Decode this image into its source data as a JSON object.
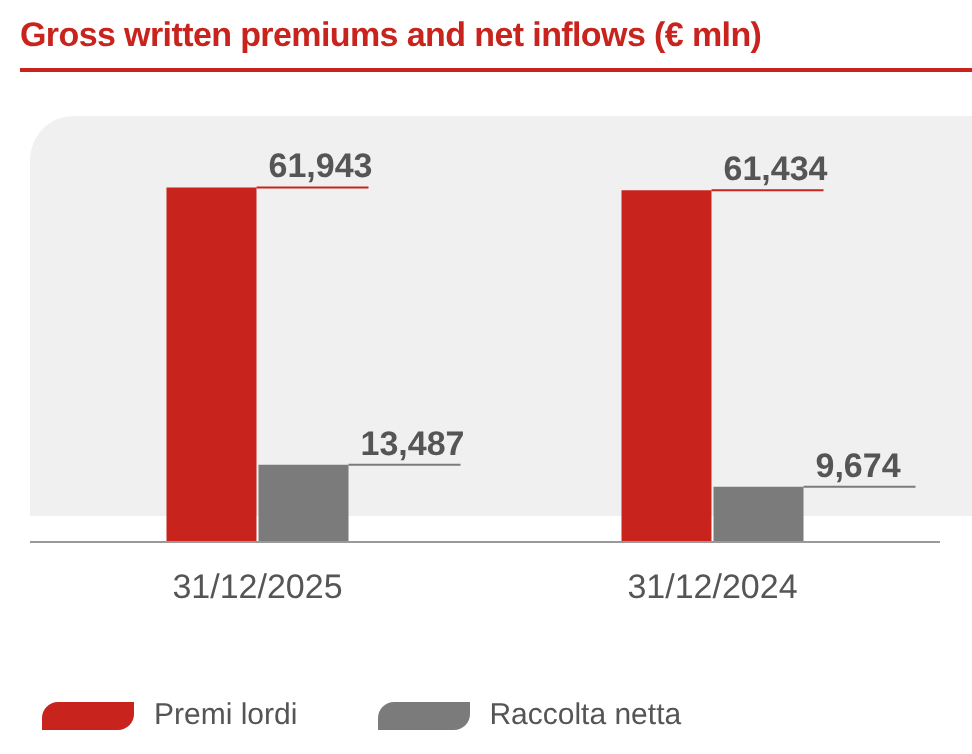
{
  "chart_data": {
    "type": "bar",
    "title": "Gross written premiums and net inflows (€ mln)",
    "categories": [
      "31/12/2025",
      "31/12/2024"
    ],
    "series": [
      {
        "name": "Premi lordi",
        "color": "#c9231d",
        "values": [
          61943,
          61434
        ],
        "value_labels": [
          "61,943",
          "61,434"
        ]
      },
      {
        "name": "Raccolta netta",
        "color": "#7b7b7b",
        "values": [
          13487,
          9674
        ],
        "value_labels": [
          "13,487",
          "9,674"
        ]
      }
    ],
    "legend": "bottom left",
    "grid": false
  }
}
